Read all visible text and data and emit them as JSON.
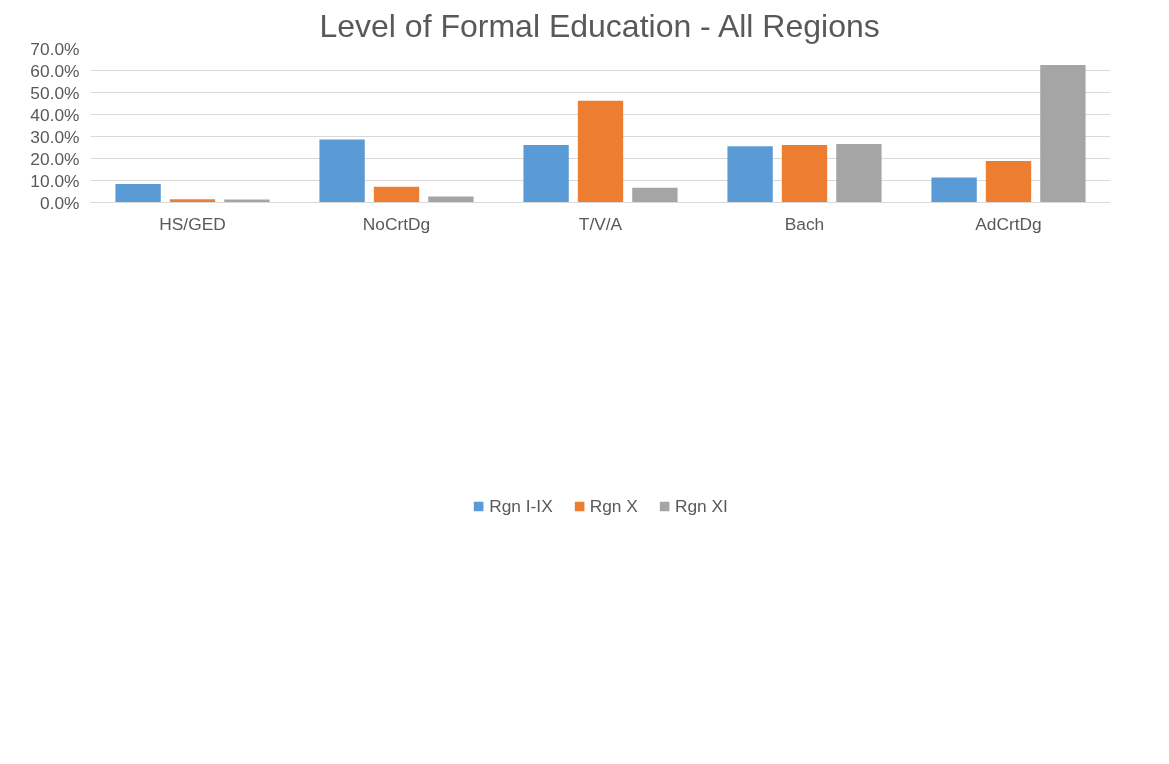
{
  "chart_data": {
    "type": "bar",
    "title": "Level of Formal Education - All Regions",
    "categories": [
      "HS/GED",
      "NoCrtDg",
      "T/V/A",
      "Bach",
      "AdCrtDg"
    ],
    "series": [
      {
        "name": "Rgn I-IX",
        "color": "#5b9bd5",
        "values": [
          8.4,
          28.6,
          26.1,
          25.6,
          11.4
        ]
      },
      {
        "name": "Rgn X",
        "color": "#ed7d31",
        "values": [
          1.5,
          7.2,
          46.3,
          26.1,
          18.9
        ]
      },
      {
        "name": "Rgn XI",
        "color": "#a5a5a5",
        "values": [
          1.4,
          2.7,
          6.7,
          26.6,
          62.5
        ]
      }
    ],
    "ylim": [
      0,
      70
    ],
    "yticks": [
      {
        "value": 0,
        "label": "0.0%"
      },
      {
        "value": 10,
        "label": "10.0%"
      },
      {
        "value": 20,
        "label": "20.0%"
      },
      {
        "value": 30,
        "label": "30.0%"
      },
      {
        "value": 40,
        "label": "40.0%"
      },
      {
        "value": 50,
        "label": "50.0%"
      },
      {
        "value": 60,
        "label": "60.0%"
      },
      {
        "value": 70,
        "label": "70.0%"
      }
    ],
    "grid": "y",
    "legend": "bottom"
  }
}
